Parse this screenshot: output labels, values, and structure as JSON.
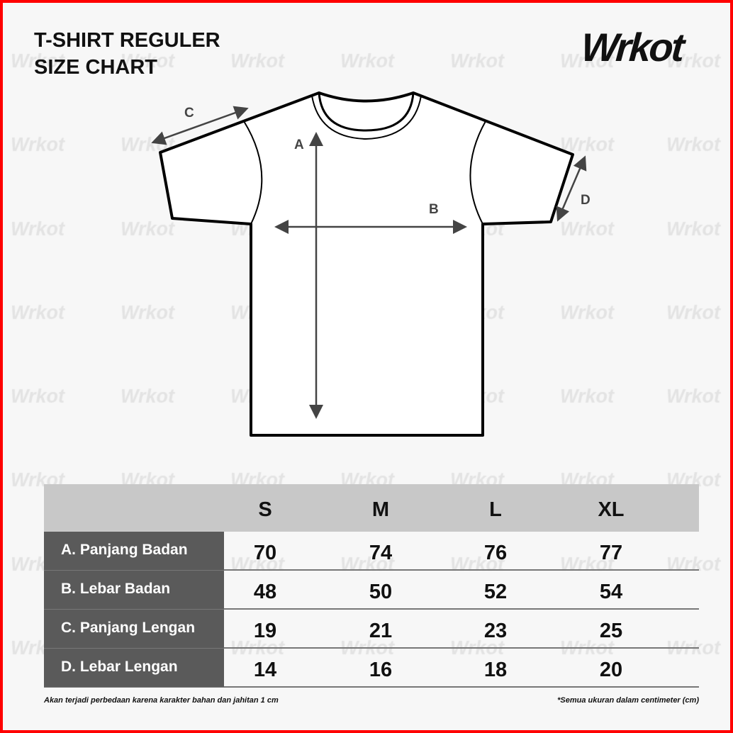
{
  "title_line1": "T-SHIRT REGULER",
  "title_line2": "SIZE CHART",
  "brand": "Wrkot",
  "watermark": "Wrkot",
  "diagram_labels": {
    "a": "A",
    "b": "B",
    "c": "C",
    "d": "D"
  },
  "table": {
    "sizes": [
      "S",
      "M",
      "L",
      "XL"
    ],
    "rows": [
      {
        "label": "A. Panjang Badan",
        "values": [
          "70",
          "74",
          "76",
          "77"
        ]
      },
      {
        "label": "B. Lebar Badan",
        "values": [
          "48",
          "50",
          "52",
          "54"
        ]
      },
      {
        "label": "C. Panjang Lengan",
        "values": [
          "19",
          "21",
          "23",
          "25"
        ]
      },
      {
        "label": "D. Lebar Lengan",
        "values": [
          "14",
          "16",
          "18",
          "20"
        ]
      }
    ]
  },
  "note_left": "Akan terjadi perbedaan karena karakter bahan dan jahitan 1 cm",
  "note_right": "*Semua ukuran dalam centimeter (cm)",
  "colors": {
    "border": "#ff0000",
    "background": "#f7f7f7",
    "header": "#c8c8c8",
    "label_column": "#5a5a5a"
  }
}
